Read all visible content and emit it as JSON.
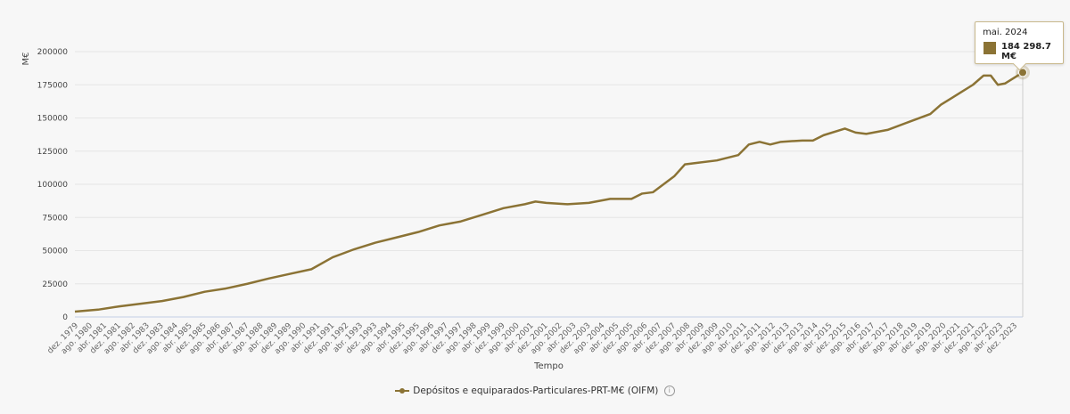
{
  "chart_data": {
    "type": "line",
    "title": "",
    "xlabel": "Tempo",
    "ylabel": "M€",
    "ylim": [
      0,
      200000
    ],
    "yticks": [
      "0",
      "25000",
      "50000",
      "75000",
      "100000",
      "125000",
      "150000",
      "175000",
      "200000"
    ],
    "grid": true,
    "legend_placement": "bottom",
    "xtick_labels": [
      "dez. 1979",
      "ago. 1980",
      "abr. 1981",
      "dez. 1981",
      "ago. 1982",
      "abr. 1983",
      "dez. 1983",
      "ago. 1984",
      "abr. 1985",
      "dez. 1985",
      "ago. 1986",
      "abr. 1987",
      "dez. 1987",
      "ago. 1988",
      "abr. 1989",
      "dez. 1989",
      "ago. 1990",
      "abr. 1991",
      "dez. 1991",
      "ago. 1992",
      "abr. 1993",
      "dez. 1993",
      "ago. 1994",
      "abr. 1995",
      "dez. 1995",
      "ago. 1996",
      "abr. 1997",
      "dez. 1997",
      "ago. 1998",
      "abr. 1999",
      "dez. 1999",
      "ago. 2000",
      "abr. 2001",
      "dez. 2001",
      "ago. 2002",
      "abr. 2003",
      "dez. 2003",
      "ago. 2004",
      "abr. 2005",
      "dez. 2005",
      "ago. 2006",
      "abr. 2007",
      "dez. 2007",
      "ago. 2008",
      "abr. 2009",
      "dez. 2009",
      "ago. 2010",
      "abr. 2011",
      "dez. 2011",
      "ago. 2012",
      "abr. 2013",
      "dez. 2013",
      "ago. 2014",
      "abr. 2015",
      "dez. 2015",
      "ago. 2016",
      "abr. 2017",
      "dez. 2017",
      "ago. 2018",
      "abr. 2019",
      "dez. 2019",
      "ago. 2020",
      "abr. 2021",
      "dez. 2021",
      "ago. 2022",
      "abr. 2023",
      "dez. 2023"
    ],
    "series": [
      {
        "name": "Depósitos e equiparados-Particulares-PRT-M€ (OIFM)",
        "color": "#8b7335",
        "points": [
          [
            "1979-12",
            4000
          ],
          [
            "1981-01",
            5500
          ],
          [
            "1982-01",
            8000
          ],
          [
            "1983-01",
            10000
          ],
          [
            "1984-01",
            12000
          ],
          [
            "1985-01",
            15000
          ],
          [
            "1986-01",
            19000
          ],
          [
            "1987-01",
            21500
          ],
          [
            "1988-01",
            25000
          ],
          [
            "1989-01",
            29000
          ],
          [
            "1990-01",
            32500
          ],
          [
            "1991-01",
            36000
          ],
          [
            "1992-01",
            45000
          ],
          [
            "1993-01",
            51000
          ],
          [
            "1994-01",
            56000
          ],
          [
            "1995-01",
            60000
          ],
          [
            "1996-01",
            64000
          ],
          [
            "1997-01",
            69000
          ],
          [
            "1998-01",
            72000
          ],
          [
            "1999-01",
            77000
          ],
          [
            "2000-01",
            82000
          ],
          [
            "2001-01",
            85000
          ],
          [
            "2001-07",
            87000
          ],
          [
            "2002-01",
            86000
          ],
          [
            "2003-01",
            85000
          ],
          [
            "2004-01",
            86000
          ],
          [
            "2005-01",
            89000
          ],
          [
            "2006-01",
            89000
          ],
          [
            "2006-07",
            93000
          ],
          [
            "2007-01",
            94000
          ],
          [
            "2007-07",
            100000
          ],
          [
            "2008-01",
            106000
          ],
          [
            "2008-07",
            115000
          ],
          [
            "2009-01",
            116000
          ],
          [
            "2010-01",
            118000
          ],
          [
            "2011-01",
            122000
          ],
          [
            "2011-07",
            130000
          ],
          [
            "2012-01",
            132000
          ],
          [
            "2012-07",
            130000
          ],
          [
            "2013-01",
            132000
          ],
          [
            "2014-01",
            133000
          ],
          [
            "2014-07",
            133000
          ],
          [
            "2015-01",
            137000
          ],
          [
            "2016-01",
            142000
          ],
          [
            "2016-07",
            139000
          ],
          [
            "2017-01",
            138000
          ],
          [
            "2018-01",
            141000
          ],
          [
            "2019-01",
            147000
          ],
          [
            "2020-01",
            153000
          ],
          [
            "2020-07",
            160000
          ],
          [
            "2021-01",
            165000
          ],
          [
            "2021-07",
            170000
          ],
          [
            "2022-01",
            175000
          ],
          [
            "2022-07",
            182000
          ],
          [
            "2022-11",
            182000
          ],
          [
            "2023-03",
            175000
          ],
          [
            "2023-07",
            176000
          ],
          [
            "2024-05",
            184298.7
          ]
        ]
      }
    ],
    "tooltip": {
      "date": "mai. 2024",
      "value": "184 298.7 M€"
    }
  },
  "legend": {
    "label": "Depósitos e equiparados-Particulares-PRT-M€ (OIFM)",
    "info_icon": "info-icon"
  }
}
